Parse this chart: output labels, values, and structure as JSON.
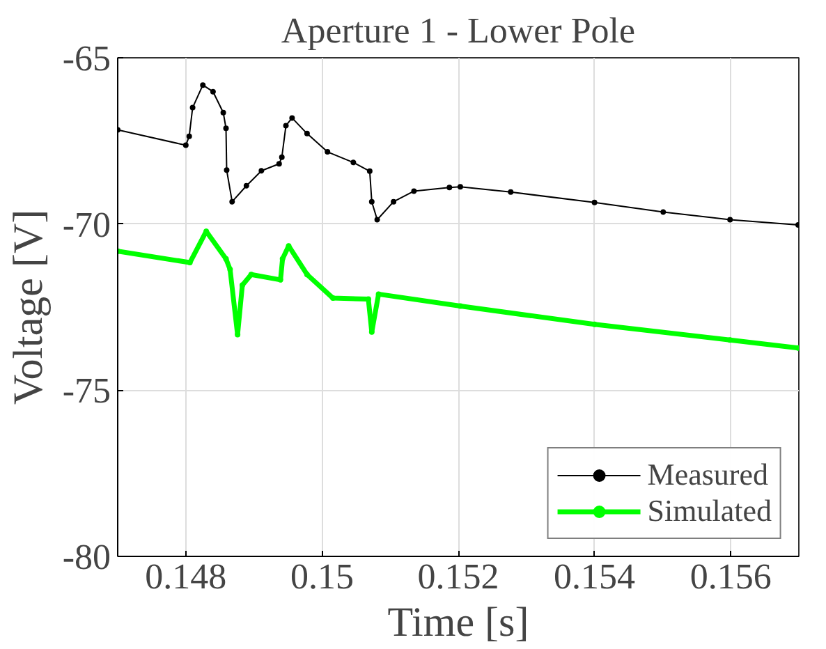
{
  "chart_data": {
    "type": "line",
    "title": "Aperture 1 - Lower Pole",
    "xlabel": "Time [s]",
    "ylabel": "Voltage [V]",
    "xlim": [
      0.147,
      0.157
    ],
    "ylim": [
      -80,
      -65
    ],
    "xticks": [
      0.148,
      0.15,
      0.152,
      0.154,
      0.156
    ],
    "yticks": [
      -80,
      -75,
      -70,
      -65
    ],
    "grid": true,
    "legend": "bottom right",
    "marker": "circle",
    "series": [
      {
        "name": "Measured",
        "color": "#000000",
        "x": [
          0.147,
          0.148,
          0.14805,
          0.1481,
          0.14825,
          0.1484,
          0.14855,
          0.14859,
          0.1486,
          0.14868,
          0.14889,
          0.14911,
          0.14937,
          0.14941,
          0.14947,
          0.14956,
          0.14978,
          0.15008,
          0.15046,
          0.1507,
          0.15073,
          0.15081,
          0.15105,
          0.15135,
          0.15187,
          0.15203,
          0.15277,
          0.154,
          0.15501,
          0.15599,
          0.15699
        ],
        "values": [
          -67.17,
          -67.63,
          -67.36,
          -66.5,
          -65.82,
          -66.02,
          -66.65,
          -67.12,
          -68.38,
          -69.33,
          -68.85,
          -68.4,
          -68.19,
          -67.99,
          -67.04,
          -66.81,
          -67.28,
          -67.83,
          -68.15,
          -68.41,
          -69.33,
          -69.87,
          -69.33,
          -69.01,
          -68.9,
          -68.88,
          -69.04,
          -69.35,
          -69.64,
          -69.87,
          -70.03
        ]
      },
      {
        "name": "Simulated",
        "color": "#00ff00",
        "x": [
          0.147,
          0.14806,
          0.1483,
          0.14859,
          0.14865,
          0.14876,
          0.14883,
          0.14896,
          0.14939,
          0.14942,
          0.14951,
          0.14978,
          0.15016,
          0.15068,
          0.15073,
          0.15083,
          0.15203,
          0.154,
          0.15599,
          0.15699
        ],
        "values": [
          -70.82,
          -71.16,
          -70.22,
          -71.05,
          -71.37,
          -73.33,
          -71.84,
          -71.52,
          -71.68,
          -71.05,
          -70.66,
          -71.52,
          -72.23,
          -72.26,
          -73.25,
          -72.11,
          -72.47,
          -73.02,
          -73.49,
          -73.73
        ]
      }
    ]
  }
}
